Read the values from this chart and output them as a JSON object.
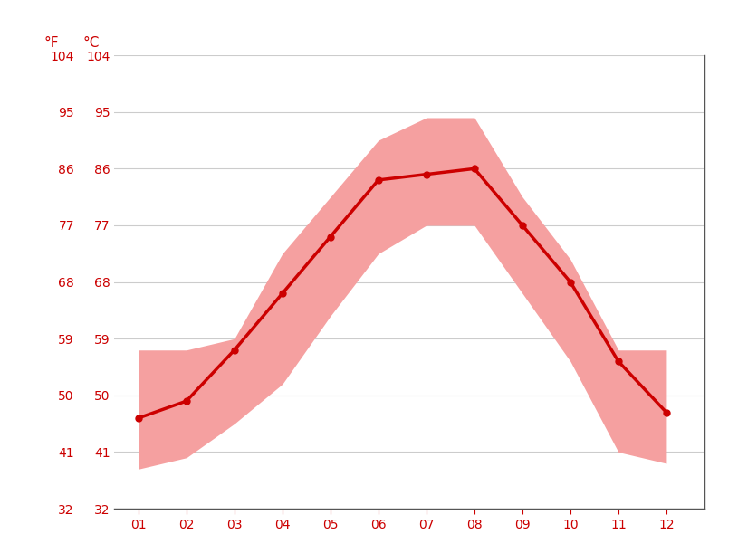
{
  "months": [
    1,
    2,
    3,
    4,
    5,
    6,
    7,
    8,
    9,
    10,
    11,
    12
  ],
  "month_labels": [
    "01",
    "02",
    "03",
    "04",
    "05",
    "06",
    "07",
    "08",
    "09",
    "10",
    "11",
    "12"
  ],
  "mean_temp_c": [
    8.0,
    9.5,
    14.0,
    19.0,
    24.0,
    29.0,
    29.5,
    30.0,
    25.0,
    20.0,
    13.0,
    8.5
  ],
  "max_temp_c": [
    14.0,
    14.0,
    15.0,
    22.5,
    27.5,
    32.5,
    34.5,
    34.5,
    27.5,
    22.0,
    14.0,
    14.0
  ],
  "min_temp_c": [
    3.5,
    4.5,
    7.5,
    11.0,
    17.0,
    22.5,
    25.0,
    25.0,
    19.0,
    13.0,
    5.0,
    4.0
  ],
  "line_color": "#cc0000",
  "band_color": "#f5a0a0",
  "background_color": "#ffffff",
  "grid_color": "#cccccc",
  "label_color": "#cc0000",
  "ymin_c": 0,
  "ymax_c": 40,
  "yticks_c": [
    0,
    5,
    10,
    15,
    20,
    25,
    30,
    35,
    40
  ],
  "yticks_f": [
    32,
    41,
    50,
    59,
    68,
    77,
    86,
    95,
    104
  ],
  "ylabel_f": "°F",
  "ylabel_c": "°C",
  "line_width": 2.5,
  "marker_size": 5,
  "xmin": 0.5,
  "xmax": 12.8
}
